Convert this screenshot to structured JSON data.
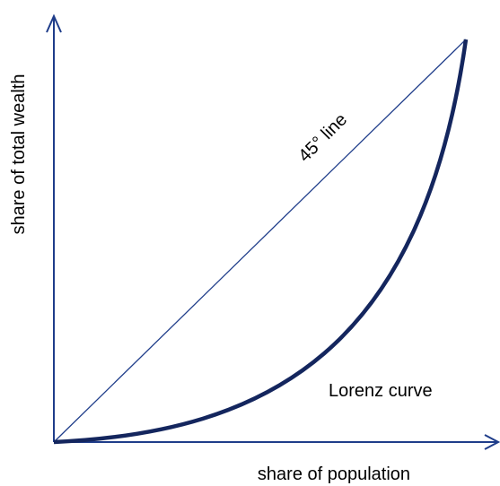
{
  "labels": {
    "x_axis": "share of population",
    "y_axis": "share of total wealth",
    "diagonal": "45° line",
    "curve": "Lorenz curve"
  }
}
